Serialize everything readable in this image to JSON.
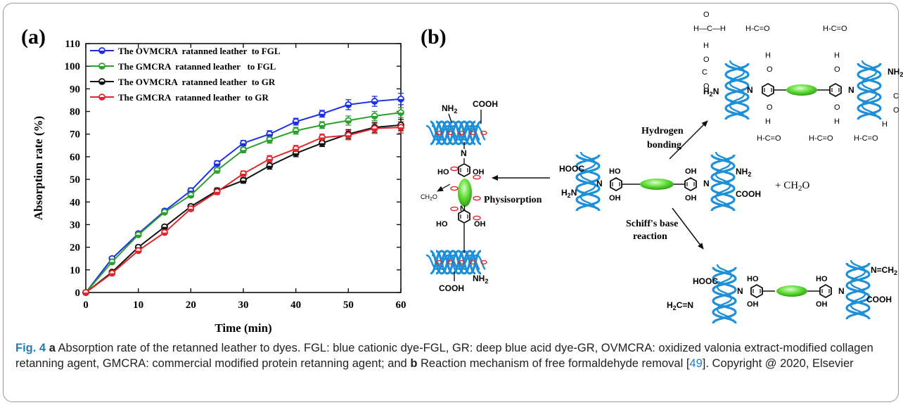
{
  "panel_labels": {
    "a": "(a)",
    "b": "(b)"
  },
  "chart_data": {
    "type": "line",
    "xlabel": "Time (min)",
    "ylabel": "Absorption rate (%)",
    "xlim": [
      0,
      60
    ],
    "ylim": [
      0,
      110
    ],
    "xticks": [
      0,
      10,
      20,
      30,
      40,
      50,
      60
    ],
    "yticks": [
      0,
      10,
      20,
      30,
      40,
      50,
      60,
      70,
      80,
      90,
      100,
      110
    ],
    "grid": false,
    "legend_position": "top-left",
    "x": [
      0,
      5,
      10,
      15,
      20,
      25,
      30,
      35,
      40,
      45,
      50,
      55,
      60
    ],
    "series": [
      {
        "name": "The OVMCRA  ratanned leather  to FGL",
        "color": "#1a2fe6",
        "values": [
          0,
          15,
          26,
          36,
          45,
          57,
          66,
          70,
          75.5,
          79,
          83,
          84.5,
          85.5
        ],
        "errors": [
          0,
          0.8,
          0.8,
          0.8,
          1.2,
          1.2,
          1.2,
          1.5,
          1.5,
          1.5,
          2.2,
          2.2,
          2.5
        ]
      },
      {
        "name": "The GMCRA  ratanned leather   to FGL",
        "color": "#2ca02c",
        "values": [
          0,
          13.5,
          25.5,
          35.5,
          43,
          54,
          63,
          67.5,
          71.5,
          74,
          76,
          78,
          79.5
        ],
        "errors": [
          0,
          0.8,
          0.8,
          0.8,
          1.0,
          1.2,
          1.2,
          1.5,
          1.5,
          1.5,
          2.0,
          2.0,
          2.2
        ]
      },
      {
        "name": "The OVMCRA  ratanned leather  to GR",
        "color": "#111111",
        "values": [
          0,
          9,
          20,
          29,
          38,
          45,
          49.5,
          56,
          61.5,
          66,
          70,
          73,
          74
        ],
        "errors": [
          0,
          0.8,
          0.8,
          0.8,
          1.0,
          1.2,
          1.2,
          1.5,
          1.5,
          1.5,
          2.0,
          2.2,
          2.5
        ]
      },
      {
        "name": "The GMCRA  ratanned leather  to GR",
        "color": "#e0262a",
        "values": [
          0,
          8.5,
          18.5,
          26.5,
          37,
          44.5,
          52.5,
          59,
          63.5,
          68.5,
          69.5,
          72.5,
          73
        ],
        "errors": [
          0,
          0.8,
          0.8,
          0.8,
          1.0,
          1.2,
          1.2,
          1.5,
          1.5,
          1.5,
          2.0,
          2.2,
          2.5
        ]
      }
    ]
  },
  "scheme": {
    "left": {
      "top_nh2": "NH",
      "top_nh2_sub": "2",
      "top_cooh": "COOH",
      "n": "N",
      "ho": "HO",
      "oh": "OH",
      "ch2o": "CH",
      "ch2o_sub": "2",
      "ch2o_tail": "O",
      "bottom_n": "N",
      "bottom_cooh": "COOH",
      "bottom_nh2": "NH",
      "bottom_nh2_sub": "2"
    },
    "arrow_left_label": "Physisorption",
    "center": {
      "hooc": "HOOC",
      "h2n": "H",
      "h2n_sub": "2",
      "h2n_tail": "N",
      "ho1": "HO",
      "oh1": "OH",
      "n1": "N",
      "ho2": "OH",
      "oh2": "OH",
      "n2": "N",
      "nh2": "NH",
      "nh2_sub": "2",
      "cooh": "COOH",
      "plus_ch2o": "+ CH",
      "plus_ch2o_sub": "2",
      "plus_ch2o_tail": "O"
    },
    "arrow_up_label_1": "Hydrogen",
    "arrow_up_label_2": "bonding",
    "arrow_down_label_1": "Schiff's base",
    "arrow_down_label_2": "reaction",
    "top": {
      "h2n": "H",
      "h2n_sub": "2",
      "h2n_tail": "N",
      "n": "N",
      "nh2": "NH",
      "nh2_sub": "2",
      "o": "O",
      "h": "H",
      "c": "C",
      "hch": "H—C—H",
      "hco": "H-C=O"
    },
    "bottom": {
      "hooc": "HOOC",
      "h2c": "H",
      "h2c_sub": "2",
      "h2c_tail": "C=N",
      "ho": "HO",
      "oh": "OH",
      "n": "N",
      "cooh": "COOH",
      "nch2": "N=CH",
      "nch2_sub": "2"
    }
  },
  "caption": {
    "fig_label": "Fig. 4",
    "part_a": "a",
    "text_a": " Absorption rate of the retanned leather to dyes. FGL: blue cationic dye-FGL, GR: deep blue acid dye-GR, OVMCRA: oxidized valonia extract-modified collagen retanning agent, GMCRA: commercial modified protein retanning agent; and ",
    "part_b": "b",
    "text_b": " Reaction mechanism of free formaldehyde removal [",
    "ref": "49",
    "text_c": "]. Copyright @ 2020, Elsevier"
  }
}
